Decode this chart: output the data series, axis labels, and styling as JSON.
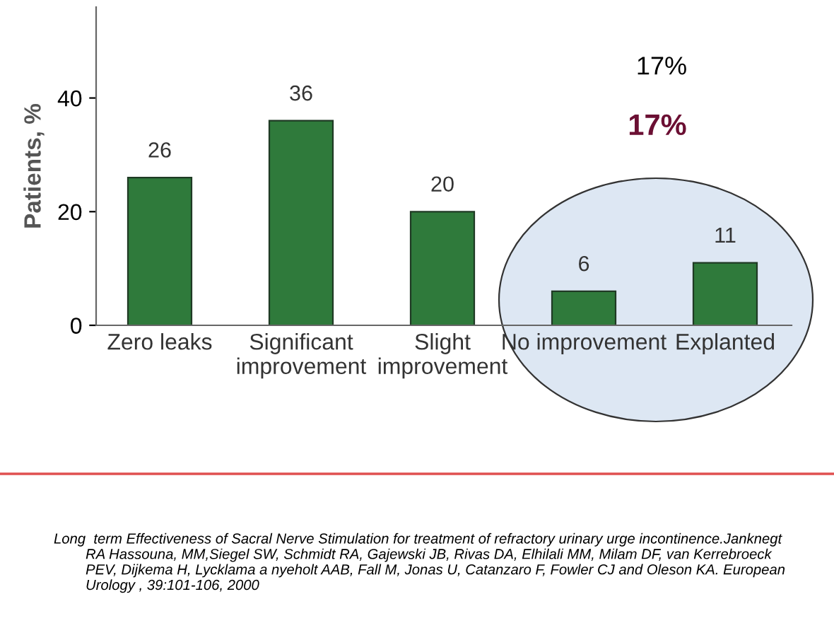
{
  "chart_data": {
    "type": "bar",
    "ylabel": "Patients, %",
    "categories": [
      "Zero leaks",
      "Significant\nimprovement",
      "Slight\nimprovement",
      "No improvement",
      "Explanted"
    ],
    "values": [
      26,
      36,
      20,
      6,
      11
    ],
    "color": "#2f7a3b",
    "data_labels": true,
    "ylim": [
      0,
      56
    ],
    "yticks": [
      0,
      20,
      40
    ],
    "grid": false,
    "legend": false,
    "annotations": [
      "17%",
      "17%",
      "Long  term Effectiveness of Sacral Nerve Stimulation for treatment of refractory urinary urge incontinence.Janknegt\n        RA Hassouna, MM,Siegel SW, Schmidt RA, Gajewski JB, Rivas DA, Elhilali MM, Milam DF, van Kerrebroeck\n        PEV, Dijkema H, Lycklama a nyeholt AAB, Fall M, Jonas U, Catanzaro F, Fowler CJ and Oleson KA. European\n        Urology , 39:101-106, 2000"
    ]
  }
}
